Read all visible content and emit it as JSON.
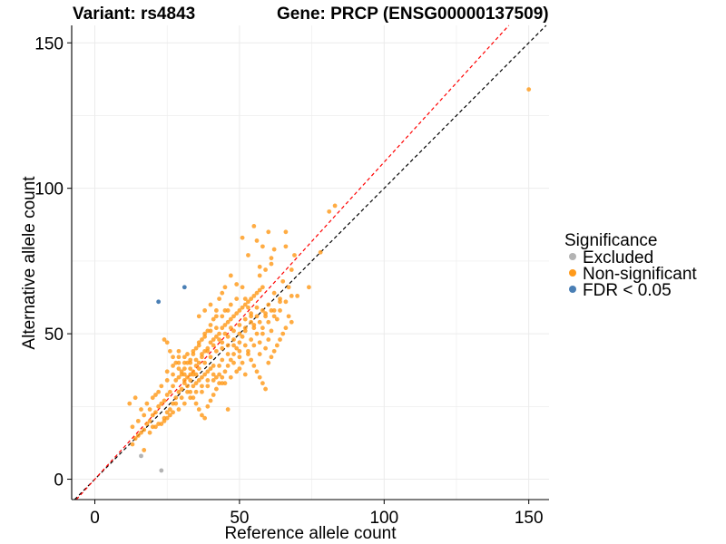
{
  "chart_data": {
    "type": "scatter",
    "title_left": "Variant: rs4843",
    "title_right": "Gene: PRCP (ENSG00000137509)",
    "xlabel": "Reference allele count",
    "ylabel": "Alternative allele count",
    "xlim": [
      -8,
      157
    ],
    "ylim": [
      -7,
      156
    ],
    "x_ticks": [
      0,
      50,
      100,
      150
    ],
    "y_ticks": [
      0,
      50,
      100,
      150
    ],
    "grid": true,
    "legend": {
      "title": "Significance",
      "position": "right",
      "entries": [
        {
          "label": "Excluded",
          "color": "#b3b3b3"
        },
        {
          "label": "Non-significant",
          "color": "#ff9a1a"
        },
        {
          "label": "FDR < 0.05",
          "color": "#4a7fb5"
        }
      ]
    },
    "reference_lines": [
      {
        "name": "identity",
        "color": "#000000",
        "dash": true,
        "intercept": 0,
        "slope": 1
      },
      {
        "name": "fit",
        "color": "#ff0000",
        "dash": true,
        "intercept": 0,
        "slope": 1.09
      }
    ],
    "series": [
      {
        "name": "Excluded",
        "color": "#b3b3b3",
        "points": [
          [
            16,
            8
          ],
          [
            23,
            3
          ]
        ]
      },
      {
        "name": "FDR < 0.05",
        "color": "#4a7fb5",
        "points": [
          [
            22,
            61
          ],
          [
            31,
            66
          ]
        ]
      },
      {
        "name": "Non-significant",
        "color": "#ff9a1a",
        "points": [
          [
            150,
            134
          ],
          [
            83,
            94
          ],
          [
            81,
            92
          ],
          [
            78,
            78
          ],
          [
            74,
            66
          ],
          [
            69,
            77
          ],
          [
            68,
            72
          ],
          [
            66,
            85
          ],
          [
            66,
            80
          ],
          [
            62,
            79
          ],
          [
            61,
            76
          ],
          [
            60,
            85
          ],
          [
            58,
            80
          ],
          [
            55,
            87
          ],
          [
            56,
            82
          ],
          [
            51,
            83
          ],
          [
            53,
            77
          ],
          [
            57,
            73
          ],
          [
            67,
            66
          ],
          [
            64,
            62
          ],
          [
            65,
            68
          ],
          [
            62,
            64
          ],
          [
            60,
            60
          ],
          [
            59,
            57
          ],
          [
            63,
            55
          ],
          [
            61,
            51
          ],
          [
            58,
            50
          ],
          [
            57,
            47
          ],
          [
            55,
            53
          ],
          [
            54,
            56
          ],
          [
            53,
            59
          ],
          [
            52,
            62
          ],
          [
            51,
            66
          ],
          [
            49,
            67
          ],
          [
            47,
            70
          ],
          [
            45,
            66
          ],
          [
            44,
            64
          ],
          [
            43,
            62
          ],
          [
            42,
            58
          ],
          [
            41,
            55
          ],
          [
            40,
            53
          ],
          [
            39,
            51
          ],
          [
            38,
            50
          ],
          [
            37,
            48
          ],
          [
            36,
            46
          ],
          [
            35,
            45
          ],
          [
            34,
            43
          ],
          [
            33,
            41
          ],
          [
            32,
            40
          ],
          [
            31,
            38
          ],
          [
            30,
            37
          ],
          [
            29,
            35
          ],
          [
            28,
            34
          ],
          [
            27,
            32
          ],
          [
            26,
            30
          ],
          [
            25,
            29
          ],
          [
            24,
            27
          ],
          [
            23,
            26
          ],
          [
            22,
            25
          ],
          [
            21,
            23
          ],
          [
            20,
            22
          ],
          [
            19,
            20
          ],
          [
            18,
            19
          ],
          [
            17,
            17
          ],
          [
            16,
            16
          ],
          [
            15,
            15
          ],
          [
            14,
            14
          ],
          [
            13,
            12
          ],
          [
            12,
            26
          ],
          [
            14,
            28
          ],
          [
            16,
            24
          ],
          [
            17,
            10
          ],
          [
            20,
            18
          ],
          [
            22,
            19
          ],
          [
            24,
            21
          ],
          [
            25,
            23
          ],
          [
            26,
            24
          ],
          [
            27,
            26
          ],
          [
            28,
            28
          ],
          [
            29,
            30
          ],
          [
            30,
            31
          ],
          [
            31,
            33
          ],
          [
            32,
            35
          ],
          [
            33,
            36
          ],
          [
            34,
            37
          ],
          [
            35,
            39
          ],
          [
            36,
            40
          ],
          [
            37,
            42
          ],
          [
            38,
            44
          ],
          [
            39,
            45
          ],
          [
            40,
            47
          ],
          [
            41,
            48
          ],
          [
            42,
            49
          ],
          [
            43,
            50
          ],
          [
            44,
            52
          ],
          [
            45,
            53
          ],
          [
            46,
            54
          ],
          [
            47,
            55
          ],
          [
            48,
            56
          ],
          [
            49,
            57
          ],
          [
            50,
            58
          ],
          [
            51,
            59
          ],
          [
            52,
            60
          ],
          [
            53,
            61
          ],
          [
            54,
            62
          ],
          [
            55,
            63
          ],
          [
            56,
            64
          ],
          [
            57,
            65
          ],
          [
            58,
            66
          ],
          [
            26,
            44
          ],
          [
            25,
            47
          ],
          [
            24,
            48
          ],
          [
            27,
            42
          ],
          [
            28,
            40
          ],
          [
            29,
            38
          ],
          [
            30,
            36
          ],
          [
            31,
            34
          ],
          [
            32,
            32
          ],
          [
            33,
            30
          ],
          [
            34,
            28
          ],
          [
            35,
            26
          ],
          [
            36,
            24
          ],
          [
            37,
            22
          ],
          [
            38,
            21
          ],
          [
            39,
            25
          ],
          [
            40,
            27
          ],
          [
            41,
            29
          ],
          [
            42,
            31
          ],
          [
            43,
            33
          ],
          [
            44,
            35
          ],
          [
            45,
            37
          ],
          [
            46,
            39
          ],
          [
            47,
            41
          ],
          [
            48,
            43
          ],
          [
            49,
            45
          ],
          [
            50,
            47
          ],
          [
            51,
            49
          ],
          [
            52,
            51
          ],
          [
            53,
            43
          ],
          [
            54,
            41
          ],
          [
            55,
            39
          ],
          [
            56,
            37
          ],
          [
            57,
            35
          ],
          [
            58,
            33
          ],
          [
            59,
            31
          ],
          [
            60,
            40
          ],
          [
            61,
            42
          ],
          [
            62,
            44
          ],
          [
            63,
            46
          ],
          [
            64,
            48
          ],
          [
            65,
            50
          ],
          [
            66,
            52
          ],
          [
            67,
            56
          ],
          [
            68,
            54
          ],
          [
            46,
            24
          ],
          [
            44,
            33
          ],
          [
            42,
            35
          ],
          [
            40,
            38
          ],
          [
            38,
            36
          ],
          [
            36,
            34
          ],
          [
            34,
            32
          ],
          [
            32,
            30
          ],
          [
            30,
            28
          ],
          [
            28,
            26
          ],
          [
            26,
            22
          ],
          [
            24,
            20
          ],
          [
            22,
            30
          ],
          [
            20,
            28
          ],
          [
            18,
            26
          ],
          [
            36,
            56
          ],
          [
            38,
            58
          ],
          [
            40,
            60
          ],
          [
            42,
            56
          ],
          [
            44,
            45
          ],
          [
            46,
            46
          ],
          [
            48,
            48
          ],
          [
            50,
            50
          ],
          [
            52,
            52
          ],
          [
            54,
            54
          ],
          [
            56,
            56
          ],
          [
            58,
            58
          ],
          [
            60,
            48
          ],
          [
            62,
            58
          ],
          [
            64,
            61
          ],
          [
            45,
            33
          ],
          [
            47,
            35
          ],
          [
            49,
            37
          ],
          [
            51,
            40
          ],
          [
            53,
            44
          ],
          [
            55,
            46
          ],
          [
            57,
            43
          ],
          [
            59,
            45
          ],
          [
            37,
            30
          ],
          [
            39,
            32
          ],
          [
            41,
            34
          ],
          [
            43,
            36
          ],
          [
            35,
            33
          ],
          [
            33,
            34
          ],
          [
            31,
            36
          ],
          [
            29,
            40
          ],
          [
            27,
            36
          ],
          [
            25,
            34
          ],
          [
            23,
            32
          ],
          [
            21,
            29
          ],
          [
            19,
            24
          ],
          [
            17,
            22
          ],
          [
            15,
            20
          ],
          [
            13,
            18
          ],
          [
            48,
            51
          ],
          [
            50,
            53
          ],
          [
            52,
            55
          ],
          [
            54,
            57
          ],
          [
            56,
            59
          ],
          [
            46,
            49
          ],
          [
            44,
            47
          ],
          [
            42,
            44
          ],
          [
            40,
            42
          ],
          [
            38,
            40
          ],
          [
            36,
            38
          ],
          [
            34,
            36
          ],
          [
            32,
            43
          ],
          [
            34,
            44
          ],
          [
            36,
            47
          ],
          [
            38,
            49
          ],
          [
            40,
            51
          ],
          [
            42,
            52
          ],
          [
            44,
            41
          ],
          [
            46,
            43
          ],
          [
            48,
            40
          ],
          [
            50,
            38
          ],
          [
            52,
            36
          ],
          [
            41,
            39
          ],
          [
            39,
            37
          ],
          [
            37,
            35
          ],
          [
            35,
            36
          ],
          [
            33,
            38
          ],
          [
            31,
            40
          ],
          [
            29,
            42
          ],
          [
            57,
            70
          ],
          [
            59,
            72
          ],
          [
            61,
            74
          ],
          [
            49,
            62
          ],
          [
            47,
            60
          ],
          [
            45,
            58
          ],
          [
            43,
            39
          ],
          [
            41,
            36
          ],
          [
            39,
            34
          ],
          [
            37,
            32
          ],
          [
            35,
            30
          ],
          [
            33,
            28
          ],
          [
            31,
            26
          ],
          [
            29,
            24
          ],
          [
            27,
            23
          ],
          [
            25,
            21
          ],
          [
            23,
            19
          ],
          [
            21,
            18
          ],
          [
            19,
            16
          ],
          [
            50,
            44
          ],
          [
            52,
            46
          ],
          [
            54,
            48
          ],
          [
            56,
            50
          ],
          [
            58,
            52
          ],
          [
            60,
            54
          ],
          [
            62,
            56
          ],
          [
            64,
            58
          ],
          [
            66,
            61
          ],
          [
            68,
            63
          ],
          [
            70,
            63
          ],
          [
            44,
            56
          ],
          [
            46,
            58
          ],
          [
            48,
            46
          ],
          [
            50,
            42
          ],
          [
            47,
            52
          ],
          [
            45,
            50
          ],
          [
            43,
            48
          ],
          [
            41,
            46
          ],
          [
            39,
            44
          ],
          [
            37,
            43
          ],
          [
            35,
            41
          ],
          [
            33,
            40
          ],
          [
            31,
            42
          ],
          [
            29,
            44
          ],
          [
            27,
            39
          ],
          [
            25,
            37
          ],
          [
            55,
            52
          ],
          [
            57,
            54
          ],
          [
            59,
            56
          ],
          [
            61,
            58
          ]
        ]
      }
    ]
  }
}
